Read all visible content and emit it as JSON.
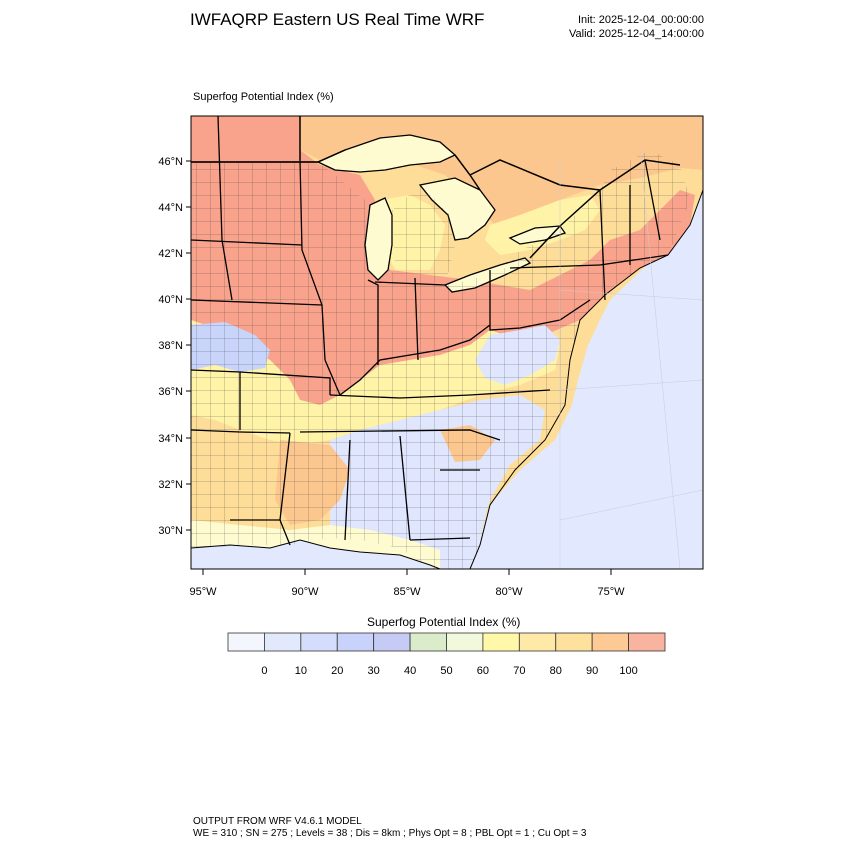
{
  "header": {
    "title": "IWFAQRP Eastern US Real Time WRF",
    "init": "Init: 2025-12-04_00:00:00",
    "valid": "Valid: 2025-12-04_14:00:00"
  },
  "map": {
    "field_title": "Superfog Potential Index   (%)",
    "lat_labels": [
      "46°N",
      "44°N",
      "42°N",
      "40°N",
      "38°N",
      "36°N",
      "34°N",
      "32°N",
      "30°N"
    ],
    "lon_labels": [
      "95°W",
      "90°W",
      "85°W",
      "80°W",
      "75°W"
    ],
    "colors": {
      "high": "#f9a38c",
      "orange": "#fcc78e",
      "light_orange": "#fedd99",
      "yellow": "#fff3a8",
      "pale_yellow": "#fffbd0",
      "pale_green": "#f3f8d8",
      "blue": "#c8d4fa",
      "light_blue": "#dfe6fd",
      "ocean": "#e2e8fd"
    }
  },
  "colorbar": {
    "title": "Superfog Potential Index  (%)",
    "labels": [
      "0",
      "10",
      "20",
      "30",
      "40",
      "50",
      "60",
      "70",
      "80",
      "90",
      "100"
    ],
    "colors": [
      "#f4f6fe",
      "#e3e9fd",
      "#d5ddfc",
      "#c9d2fb",
      "#c6cbf6",
      "#dbeccb",
      "#f1f8dc",
      "#fff8a8",
      "#feeaa6",
      "#fde19c",
      "#fdca96",
      "#f8b49e"
    ]
  },
  "footer": {
    "line1": "OUTPUT FROM WRF V4.6.1 MODEL",
    "line2": "WE = 310 ; SN = 275 ; Levels = 38 ; Dis = 8km ; Phys Opt = 8 ; PBL Opt = 1 ; Cu Opt = 3"
  }
}
